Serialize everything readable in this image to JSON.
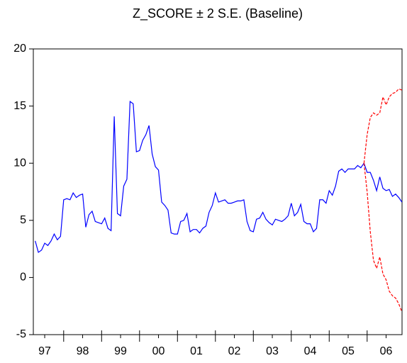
{
  "chart_data": {
    "type": "line",
    "title": "Z_SCORE ± 2 S.E. (Baseline)",
    "xlim": [
      1997.2,
      2006.92
    ],
    "ylim": [
      -5,
      20
    ],
    "yticks": [
      -5,
      0,
      5,
      10,
      15,
      20
    ],
    "xticks": [
      {
        "value": 1997.5,
        "label": "97"
      },
      {
        "value": 1998.5,
        "label": "98"
      },
      {
        "value": 1999.5,
        "label": "99"
      },
      {
        "value": 2000.5,
        "label": "00"
      },
      {
        "value": 2001.5,
        "label": "01"
      },
      {
        "value": 2002.5,
        "label": "02"
      },
      {
        "value": 2003.5,
        "label": "03"
      },
      {
        "value": 2004.5,
        "label": "04"
      },
      {
        "value": 2005.5,
        "label": "05"
      },
      {
        "value": 2006.5,
        "label": "06"
      }
    ],
    "grid": false,
    "series": [
      {
        "color": "#0000ff",
        "dash": false,
        "x": [
          1997.25,
          1997.333,
          1997.417,
          1997.5,
          1997.583,
          1997.667,
          1997.75,
          1997.833,
          1997.917,
          1998,
          1998.083,
          1998.167,
          1998.25,
          1998.333,
          1998.417,
          1998.5,
          1998.583,
          1998.667,
          1998.75,
          1998.833,
          1998.917,
          1999,
          1999.083,
          1999.167,
          1999.25,
          1999.333,
          1999.417,
          1999.5,
          1999.583,
          1999.667,
          1999.75,
          1999.833,
          1999.917,
          2000,
          2000.083,
          2000.167,
          2000.25,
          2000.333,
          2000.417,
          2000.5,
          2000.583,
          2000.667,
          2000.75,
          2000.833,
          2000.917,
          2001,
          2001.083,
          2001.167,
          2001.25,
          2001.333,
          2001.417,
          2001.5,
          2001.583,
          2001.667,
          2001.75,
          2001.833,
          2001.917,
          2002,
          2002.083,
          2002.167,
          2002.25,
          2002.333,
          2002.417,
          2002.5,
          2002.583,
          2002.667,
          2002.75,
          2002.833,
          2002.917,
          2003,
          2003.083,
          2003.167,
          2003.25,
          2003.333,
          2003.417,
          2003.5,
          2003.583,
          2003.667,
          2003.75,
          2003.833,
          2003.917,
          2004,
          2004.083,
          2004.167,
          2004.25,
          2004.333,
          2004.417,
          2004.5,
          2004.583,
          2004.667,
          2004.75,
          2004.833,
          2004.917,
          2005,
          2005.083,
          2005.167,
          2005.25,
          2005.333,
          2005.417,
          2005.5,
          2005.583,
          2005.667,
          2005.75,
          2005.833,
          2005.917,
          2006,
          2006.083,
          2006.167,
          2006.25,
          2006.333,
          2006.417,
          2006.5,
          2006.583,
          2006.667,
          2006.75,
          2006.833,
          2006.917
        ],
        "values": [
          3.2,
          2.2,
          2.4,
          3.0,
          2.8,
          3.2,
          3.8,
          3.3,
          3.6,
          6.8,
          6.9,
          6.8,
          7.4,
          7.0,
          7.2,
          7.3,
          4.4,
          5.5,
          5.8,
          4.9,
          4.8,
          4.7,
          5.2,
          4.3,
          4.1,
          14.1,
          5.6,
          5.4,
          8.0,
          8.6,
          15.4,
          15.2,
          11.0,
          11.1,
          12.0,
          12.5,
          13.3,
          10.8,
          9.7,
          9.4,
          6.6,
          6.3,
          5.9,
          3.9,
          3.8,
          3.8,
          4.9,
          5.0,
          5.6,
          4.0,
          4.2,
          4.2,
          3.9,
          4.3,
          4.5,
          5.7,
          6.3,
          7.4,
          6.6,
          6.7,
          6.8,
          6.5,
          6.5,
          6.6,
          6.7,
          6.7,
          6.8,
          4.9,
          4.1,
          4.0,
          5.1,
          5.2,
          5.7,
          5.1,
          4.8,
          4.6,
          5.1,
          5.0,
          4.9,
          5.1,
          5.4,
          6.5,
          5.4,
          5.7,
          6.4,
          4.9,
          4.7,
          4.7,
          4.0,
          4.3,
          6.8,
          6.8,
          6.5,
          7.6,
          7.2,
          8.0,
          9.3,
          9.5,
          9.2,
          9.5,
          9.5,
          9.5,
          9.8,
          9.6,
          10.0,
          9.2,
          9.2,
          8.5,
          7.6,
          8.8,
          7.8,
          7.6,
          7.7,
          7.1,
          7.3,
          7.0,
          6.6
        ]
      },
      {
        "color": "#ff0000",
        "dash": true,
        "x": [
          2005.917,
          2006,
          2006.083,
          2006.167,
          2006.25,
          2006.333,
          2006.417,
          2006.5,
          2006.583,
          2006.667,
          2006.75,
          2006.833,
          2006.917
        ],
        "values": [
          10.0,
          12.5,
          14.0,
          14.4,
          14.2,
          14.4,
          15.8,
          15.1,
          15.8,
          16.1,
          16.2,
          16.5,
          16.4
        ]
      },
      {
        "color": "#ff0000",
        "dash": true,
        "x": [
          2005.917,
          2006,
          2006.083,
          2006.167,
          2006.25,
          2006.333,
          2006.417,
          2006.5,
          2006.583,
          2006.667,
          2006.75,
          2006.833,
          2006.917
        ],
        "values": [
          10.0,
          7.5,
          4.0,
          1.5,
          0.8,
          1.8,
          0.3,
          -0.2,
          -1.2,
          -1.6,
          -1.8,
          -2.3,
          -3.0
        ]
      }
    ]
  }
}
